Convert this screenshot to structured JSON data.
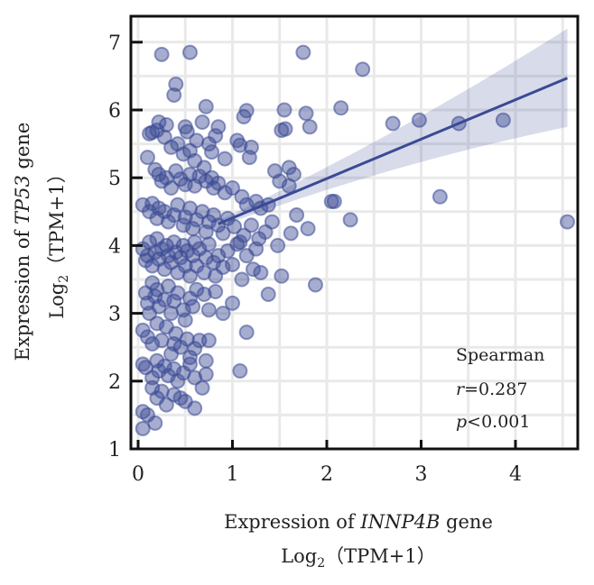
{
  "chart_data": {
    "type": "scatter",
    "xlabel": {
      "prefix": "Expression of ",
      "gene": "INNP4B",
      "suffix": " gene",
      "line2_main": "Log",
      "line2_sub": "2",
      "line2_rest": "（TPM+1）"
    },
    "ylabel": {
      "prefix": "Expression of ",
      "gene": "TP53",
      "suffix": " gene",
      "line2_main": "Log",
      "line2_sub": "2",
      "line2_rest": "（TPM+1）"
    },
    "xlim": [
      -0.08,
      4.65
    ],
    "ylim": [
      0.9,
      7.35
    ],
    "xticks": [
      "0",
      "1",
      "2",
      "3",
      "4"
    ],
    "yticks": [
      "1",
      "2",
      "3",
      "4",
      "5",
      "6",
      "7"
    ],
    "grid": true,
    "annotation": {
      "method": "Spearman",
      "r_label": "r",
      "r_value": "=0.287",
      "p_label": "p",
      "p_value": "<0.001"
    },
    "regression": {
      "x": [
        0.85,
        4.55
      ],
      "y": [
        4.32,
        6.47
      ],
      "ci_upper_end": 7.2,
      "ci_lower_end": 5.75
    },
    "point_color": "#3b4a94",
    "points": [
      [
        0.25,
        6.82
      ],
      [
        0.55,
        6.85
      ],
      [
        1.75,
        6.85
      ],
      [
        2.38,
        6.6
      ],
      [
        0.4,
        6.38
      ],
      [
        0.38,
        6.22
      ],
      [
        0.22,
        5.82
      ],
      [
        0.3,
        5.78
      ],
      [
        0.5,
        5.75
      ],
      [
        0.52,
        5.68
      ],
      [
        0.68,
        5.82
      ],
      [
        0.72,
        6.05
      ],
      [
        0.85,
        5.75
      ],
      [
        1.12,
        5.9
      ],
      [
        1.55,
        6.0
      ],
      [
        1.78,
        5.95
      ],
      [
        2.15,
        6.03
      ],
      [
        1.15,
        5.99
      ],
      [
        1.82,
        5.75
      ],
      [
        2.7,
        5.8
      ],
      [
        2.98,
        5.85
      ],
      [
        3.4,
        5.8
      ],
      [
        3.87,
        5.85
      ],
      [
        0.12,
        5.65
      ],
      [
        0.15,
        5.67
      ],
      [
        0.2,
        5.7
      ],
      [
        0.28,
        5.6
      ],
      [
        0.35,
        5.45
      ],
      [
        0.42,
        5.5
      ],
      [
        0.48,
        5.35
      ],
      [
        0.55,
        5.4
      ],
      [
        0.6,
        5.25
      ],
      [
        0.62,
        5.55
      ],
      [
        0.75,
        5.5
      ],
      [
        0.78,
        5.38
      ],
      [
        0.82,
        5.62
      ],
      [
        0.92,
        5.28
      ],
      [
        1.05,
        5.55
      ],
      [
        1.08,
        5.48
      ],
      [
        1.2,
        5.45
      ],
      [
        1.18,
        5.3
      ],
      [
        1.52,
        5.7
      ],
      [
        1.56,
        5.72
      ],
      [
        1.6,
        5.15
      ],
      [
        0.1,
        5.3
      ],
      [
        0.18,
        5.12
      ],
      [
        0.22,
        5.05
      ],
      [
        0.25,
        4.95
      ],
      [
        0.3,
        5.0
      ],
      [
        0.35,
        4.85
      ],
      [
        0.4,
        5.1
      ],
      [
        0.45,
        4.98
      ],
      [
        0.5,
        4.9
      ],
      [
        0.55,
        5.05
      ],
      [
        0.6,
        4.88
      ],
      [
        0.65,
        5.02
      ],
      [
        0.7,
        5.15
      ],
      [
        0.72,
        4.95
      ],
      [
        0.78,
        5.0
      ],
      [
        0.8,
        4.85
      ],
      [
        0.85,
        4.92
      ],
      [
        0.92,
        4.78
      ],
      [
        1.0,
        4.85
      ],
      [
        1.1,
        4.72
      ],
      [
        1.15,
        4.6
      ],
      [
        1.25,
        4.65
      ],
      [
        1.3,
        4.55
      ],
      [
        1.38,
        4.6
      ],
      [
        1.45,
        5.1
      ],
      [
        1.5,
        4.95
      ],
      [
        1.6,
        4.88
      ],
      [
        1.65,
        5.05
      ],
      [
        2.05,
        4.65
      ],
      [
        2.08,
        4.65
      ],
      [
        3.2,
        4.72
      ],
      [
        0.05,
        4.6
      ],
      [
        0.12,
        4.5
      ],
      [
        0.15,
        4.62
      ],
      [
        0.2,
        4.4
      ],
      [
        0.22,
        4.55
      ],
      [
        0.28,
        4.5
      ],
      [
        0.32,
        4.35
      ],
      [
        0.38,
        4.45
      ],
      [
        0.42,
        4.6
      ],
      [
        0.48,
        4.3
      ],
      [
        0.5,
        4.42
      ],
      [
        0.55,
        4.55
      ],
      [
        0.58,
        4.25
      ],
      [
        0.62,
        4.38
      ],
      [
        0.68,
        4.5
      ],
      [
        0.72,
        4.2
      ],
      [
        0.75,
        4.35
      ],
      [
        0.8,
        4.45
      ],
      [
        0.85,
        4.3
      ],
      [
        0.9,
        4.18
      ],
      [
        0.95,
        4.4
      ],
      [
        1.02,
        4.28
      ],
      [
        1.08,
        4.05
      ],
      [
        1.12,
        4.15
      ],
      [
        1.2,
        4.3
      ],
      [
        1.28,
        4.1
      ],
      [
        1.35,
        4.2
      ],
      [
        1.42,
        4.35
      ],
      [
        1.48,
        4.0
      ],
      [
        1.62,
        4.18
      ],
      [
        1.68,
        4.45
      ],
      [
        1.8,
        4.25
      ],
      [
        2.25,
        4.38
      ],
      [
        4.55,
        4.35
      ],
      [
        0.05,
        3.95
      ],
      [
        0.08,
        3.78
      ],
      [
        0.1,
        3.85
      ],
      [
        0.12,
        4.05
      ],
      [
        0.15,
        3.7
      ],
      [
        0.18,
        3.9
      ],
      [
        0.2,
        4.1
      ],
      [
        0.22,
        3.8
      ],
      [
        0.25,
        3.95
      ],
      [
        0.28,
        3.65
      ],
      [
        0.3,
        4.0
      ],
      [
        0.32,
        3.85
      ],
      [
        0.35,
        3.75
      ],
      [
        0.38,
        4.05
      ],
      [
        0.4,
        3.9
      ],
      [
        0.42,
        3.6
      ],
      [
        0.45,
        3.82
      ],
      [
        0.48,
        4.0
      ],
      [
        0.5,
        3.7
      ],
      [
        0.52,
        3.92
      ],
      [
        0.55,
        3.55
      ],
      [
        0.58,
        3.85
      ],
      [
        0.6,
        4.05
      ],
      [
        0.62,
        3.7
      ],
      [
        0.65,
        3.95
      ],
      [
        0.7,
        3.6
      ],
      [
        0.72,
        3.82
      ],
      [
        0.75,
        4.02
      ],
      [
        0.8,
        3.75
      ],
      [
        0.82,
        3.55
      ],
      [
        0.85,
        3.85
      ],
      [
        0.9,
        3.68
      ],
      [
        0.95,
        3.92
      ],
      [
        1.0,
        3.72
      ],
      [
        1.05,
        4.02
      ],
      [
        1.1,
        3.5
      ],
      [
        1.15,
        3.85
      ],
      [
        1.22,
        3.65
      ],
      [
        1.25,
        3.95
      ],
      [
        1.3,
        3.6
      ],
      [
        1.38,
        3.28
      ],
      [
        1.52,
        3.55
      ],
      [
        1.88,
        3.42
      ],
      [
        0.08,
        3.3
      ],
      [
        0.1,
        3.15
      ],
      [
        0.12,
        3.0
      ],
      [
        0.15,
        3.45
      ],
      [
        0.18,
        3.25
      ],
      [
        0.2,
        3.35
      ],
      [
        0.22,
        3.1
      ],
      [
        0.28,
        3.2
      ],
      [
        0.32,
        3.4
      ],
      [
        0.35,
        3.0
      ],
      [
        0.38,
        3.18
      ],
      [
        0.42,
        3.3
      ],
      [
        0.48,
        3.05
      ],
      [
        0.5,
        2.9
      ],
      [
        0.55,
        3.22
      ],
      [
        0.58,
        3.1
      ],
      [
        0.62,
        3.35
      ],
      [
        0.7,
        3.28
      ],
      [
        0.75,
        3.05
      ],
      [
        0.82,
        3.32
      ],
      [
        0.9,
        3.0
      ],
      [
        1.0,
        3.15
      ],
      [
        1.15,
        2.72
      ],
      [
        0.05,
        2.75
      ],
      [
        0.1,
        2.65
      ],
      [
        0.15,
        2.55
      ],
      [
        0.2,
        2.85
      ],
      [
        0.25,
        2.6
      ],
      [
        0.3,
        2.8
      ],
      [
        0.35,
        2.4
      ],
      [
        0.38,
        2.55
      ],
      [
        0.4,
        2.7
      ],
      [
        0.45,
        2.5
      ],
      [
        0.52,
        2.62
      ],
      [
        0.55,
        2.35
      ],
      [
        0.6,
        2.48
      ],
      [
        0.65,
        2.6
      ],
      [
        0.72,
        2.3
      ],
      [
        0.75,
        2.6
      ],
      [
        0.05,
        2.25
      ],
      [
        0.08,
        2.2
      ],
      [
        0.15,
        2.05
      ],
      [
        0.2,
        2.3
      ],
      [
        0.22,
        2.15
      ],
      [
        0.28,
        2.22
      ],
      [
        0.32,
        2.08
      ],
      [
        0.38,
        2.18
      ],
      [
        0.42,
        2.0
      ],
      [
        0.48,
        2.12
      ],
      [
        0.55,
        2.25
      ],
      [
        0.6,
        2.05
      ],
      [
        0.68,
        1.9
      ],
      [
        0.72,
        2.1
      ],
      [
        1.08,
        2.15
      ],
      [
        0.15,
        1.9
      ],
      [
        0.2,
        1.75
      ],
      [
        0.25,
        1.85
      ],
      [
        0.3,
        1.65
      ],
      [
        0.38,
        1.8
      ],
      [
        0.45,
        1.75
      ],
      [
        0.5,
        1.7
      ],
      [
        0.6,
        1.6
      ],
      [
        0.05,
        1.55
      ],
      [
        0.1,
        1.5
      ],
      [
        0.18,
        1.38
      ],
      [
        0.05,
        1.3
      ]
    ]
  }
}
